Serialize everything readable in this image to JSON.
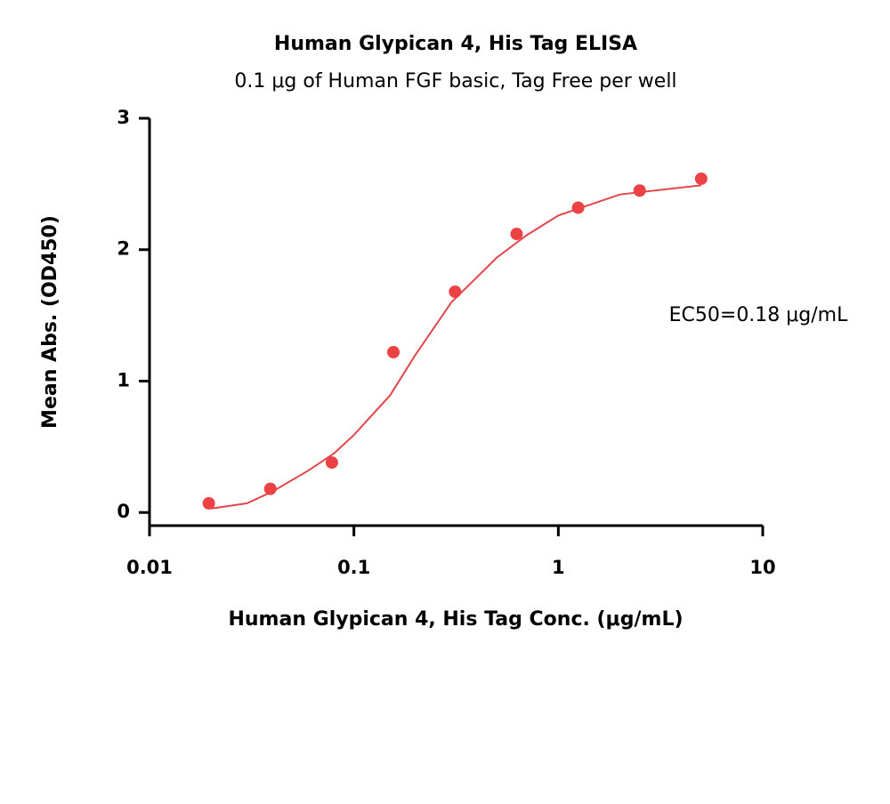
{
  "chart_data": {
    "type": "scatter",
    "title": "Human Glypican 4, His Tag ELISA",
    "subtitle": "0.1 μg of Human FGF basic, Tag Free per well",
    "x_label": "Human Glypican 4, His Tag Conc. (μg/mL)",
    "y_label": "Mean Abs. (OD450)",
    "annotation": "EC50=0.18 μg/mL",
    "x_scale": "log",
    "xlim": [
      0.01,
      10
    ],
    "xticks": [
      0.01,
      0.1,
      1,
      10
    ],
    "ylim": [
      -0.1,
      3
    ],
    "yticks": [
      0,
      1,
      2,
      3
    ],
    "series": [
      {
        "kind": "points",
        "color": "#ec4245",
        "x": [
          0.0195,
          0.039,
          0.078,
          0.156,
          0.3125,
          0.625,
          1.25,
          2.5,
          5
        ],
        "values": [
          0.07,
          0.18,
          0.38,
          1.22,
          1.68,
          2.12,
          2.32,
          2.45,
          2.54
        ]
      },
      {
        "kind": "fit",
        "color": "#e0474a",
        "x": [
          0.02,
          0.03,
          0.04,
          0.06,
          0.08,
          0.1,
          0.15,
          0.2,
          0.3,
          0.5,
          0.7,
          1,
          2,
          5
        ],
        "values": [
          0.03,
          0.07,
          0.16,
          0.32,
          0.45,
          0.59,
          0.89,
          1.2,
          1.6,
          1.94,
          2.11,
          2.26,
          2.42,
          2.49
        ]
      }
    ]
  }
}
